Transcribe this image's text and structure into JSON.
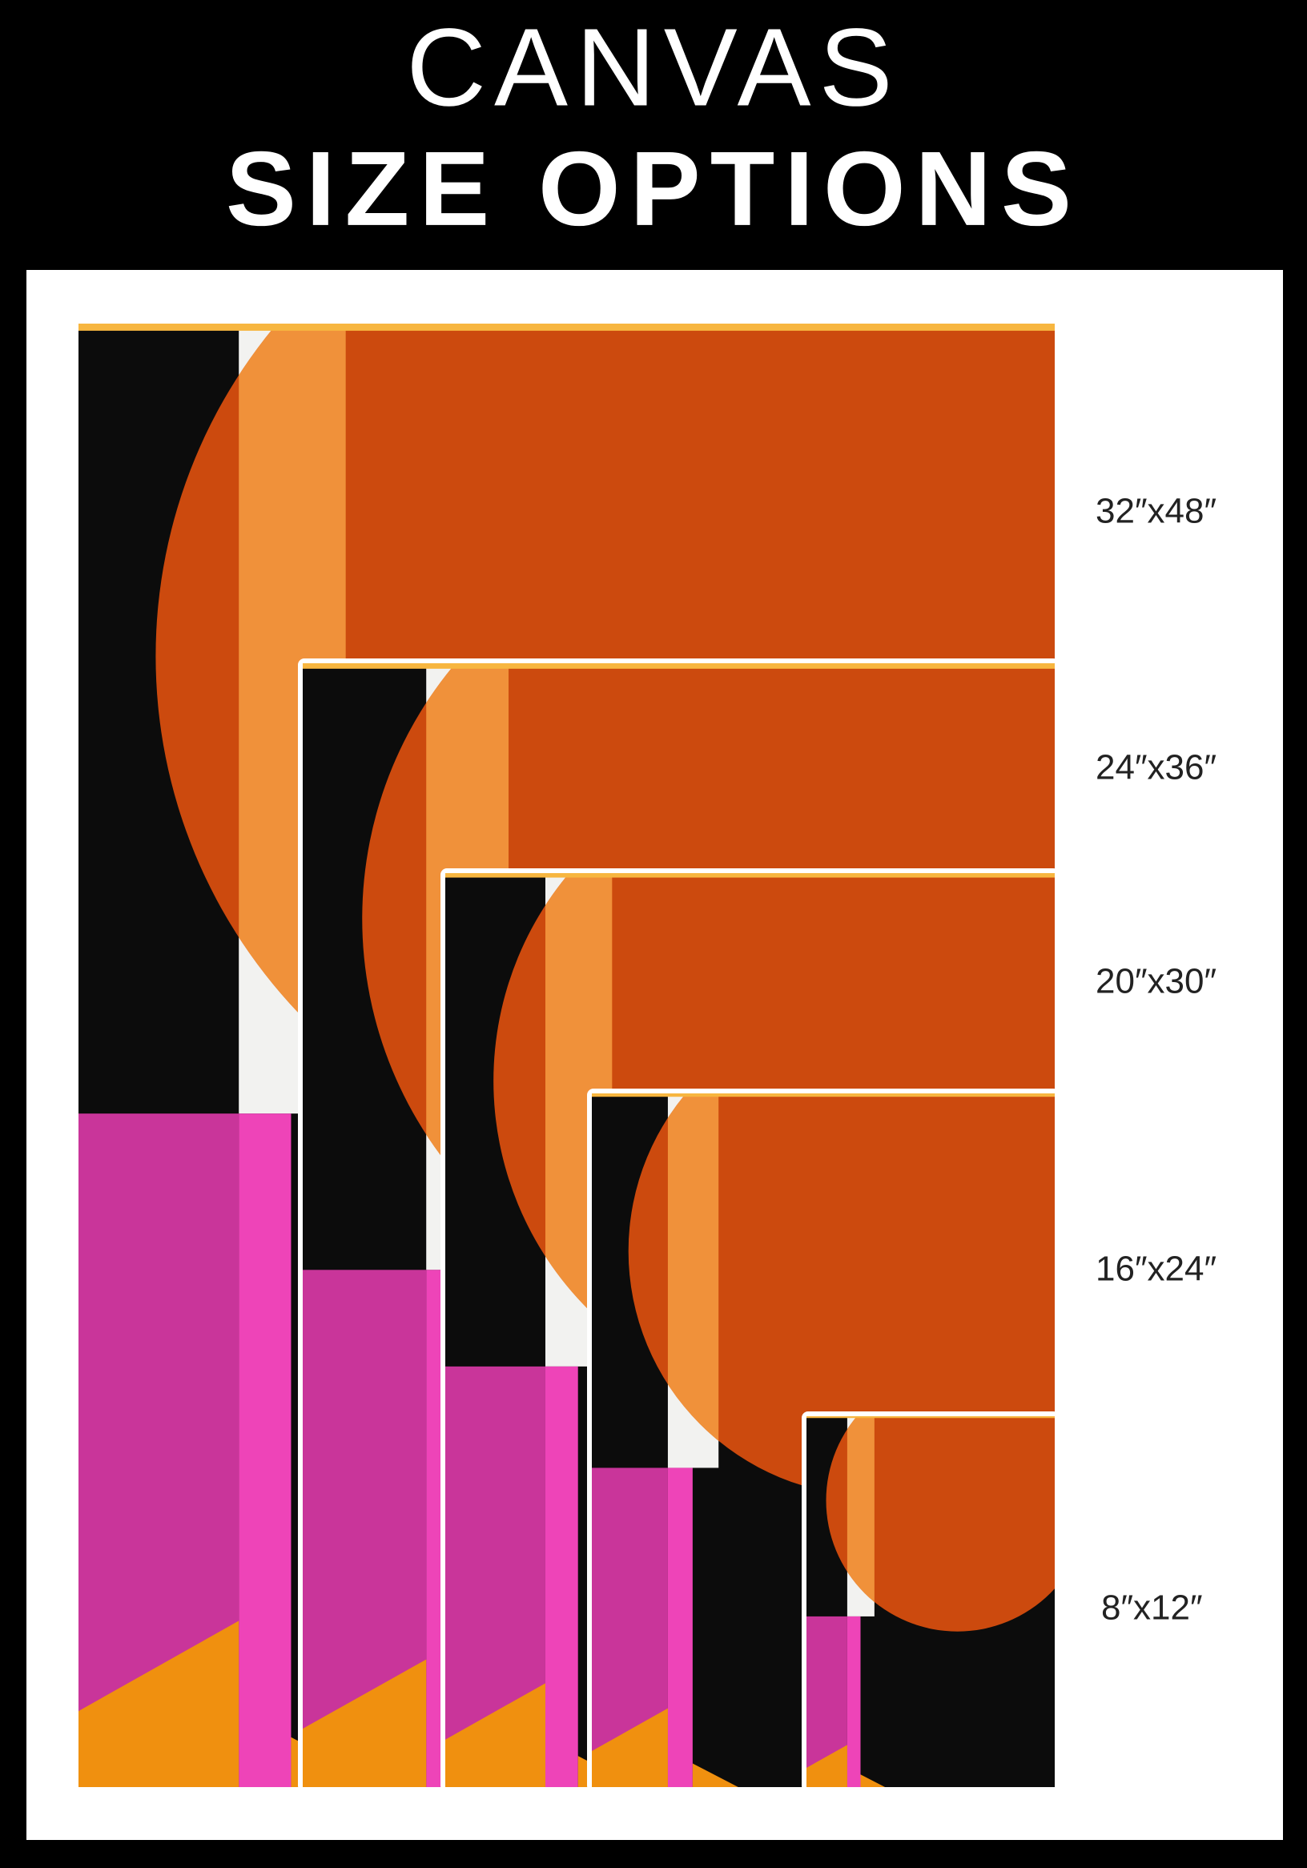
{
  "header": {
    "line1": "CANVAS",
    "line2": "SIZE OPTIONS"
  },
  "sizes": [
    "32″x48″",
    "24″x36″",
    "20″x30″",
    "16″x24″",
    "8″x12″"
  ]
}
